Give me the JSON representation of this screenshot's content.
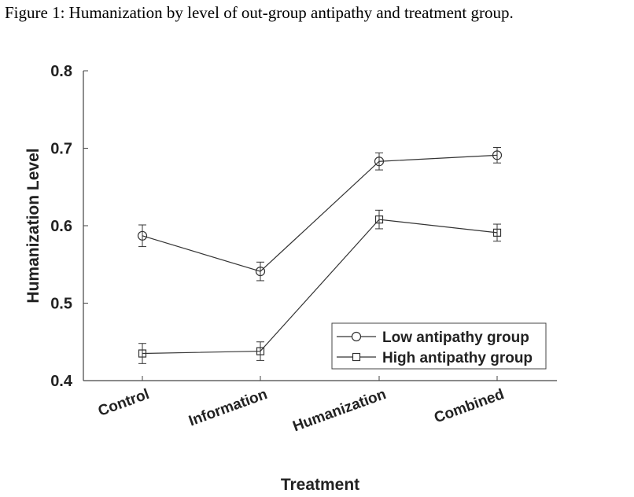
{
  "caption": "Figure 1: Humanization by level of out-group antipathy and treatment group.",
  "chart_data": {
    "type": "line",
    "xlabel": "Treatment",
    "ylabel": "Humanization Level",
    "categories": [
      "Control",
      "Information",
      "Humanization",
      "Combined"
    ],
    "ylim": [
      0.4,
      0.8
    ],
    "yticks": [
      "0.4",
      "0.5",
      "0.6",
      "0.7",
      "0.8"
    ],
    "grid": false,
    "legend_position": "bottom-right",
    "series": [
      {
        "name": "Low antipathy group",
        "marker": "circle",
        "values": [
          0.587,
          0.541,
          0.683,
          0.691
        ],
        "error": [
          0.014,
          0.012,
          0.011,
          0.01
        ]
      },
      {
        "name": "High antipathy group",
        "marker": "square",
        "values": [
          0.435,
          0.438,
          0.608,
          0.591
        ],
        "error": [
          0.013,
          0.012,
          0.012,
          0.011
        ]
      }
    ],
    "colors": {
      "line": "#333333",
      "axis": "#444444"
    }
  }
}
